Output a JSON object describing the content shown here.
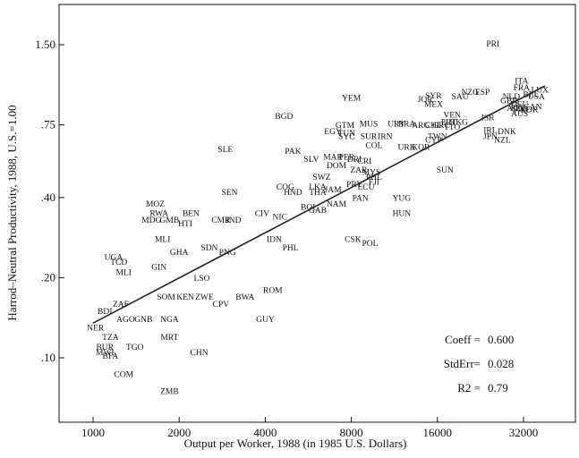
{
  "chart_data": {
    "type": "scatter",
    "xlabel": "Output per Worker, 1988 (in 1985 U.S. Dollars)",
    "ylabel": "Harrod–Neutral Productivity, 1988, U.S.=1.00",
    "x_scale": "log",
    "y_scale": "log",
    "xlim": [
      700,
      50000
    ],
    "ylim": [
      0.07,
      1.8
    ],
    "x_ticks": [
      {
        "value": 1000,
        "label": "1000"
      },
      {
        "value": 2000,
        "label": "2000"
      },
      {
        "value": 4000,
        "label": "4000"
      },
      {
        "value": 8000,
        "label": "8000"
      },
      {
        "value": 16000,
        "label": "16000"
      },
      {
        "value": 32000,
        "label": "32000"
      }
    ],
    "y_ticks": [
      {
        "value": 0.1,
        "label": ".10"
      },
      {
        "value": 0.2,
        "label": ".20"
      },
      {
        "value": 0.4,
        "label": ".40"
      },
      {
        "value": 0.75,
        "label": ".75"
      },
      {
        "value": 1.5,
        "label": "1.50"
      }
    ],
    "fit_line": {
      "x": [
        1000,
        38000
      ],
      "y": [
        0.135,
        1.05
      ]
    },
    "stats": [
      {
        "label": "Coeff =",
        "value": "0.600"
      },
      {
        "label": "StdErr=",
        "value": "0.028"
      },
      {
        "label": "R2 =",
        "value": "0.79"
      }
    ],
    "points": [
      {
        "label": "PRI",
        "x": 25000,
        "y": 1.52
      },
      {
        "label": "ITA",
        "x": 31500,
        "y": 1.1
      },
      {
        "label": "FRA",
        "x": 31500,
        "y": 1.04
      },
      {
        "label": "LUX",
        "x": 36500,
        "y": 1.02
      },
      {
        "label": "BEL",
        "x": 34000,
        "y": 0.98
      },
      {
        "label": "USA",
        "x": 35500,
        "y": 0.96
      },
      {
        "label": "NLD",
        "x": 29000,
        "y": 0.96
      },
      {
        "label": "ESP",
        "x": 23000,
        "y": 1.0
      },
      {
        "label": "NZG",
        "x": 20800,
        "y": 1.0
      },
      {
        "label": "SAU",
        "x": 19200,
        "y": 0.96
      },
      {
        "label": "SYR",
        "x": 15500,
        "y": 0.97
      },
      {
        "label": "JOR",
        "x": 14500,
        "y": 0.94
      },
      {
        "label": "MEX",
        "x": 15500,
        "y": 0.9
      },
      {
        "label": "GBR",
        "x": 28500,
        "y": 0.93
      },
      {
        "label": "DEU",
        "x": 31000,
        "y": 0.9
      },
      {
        "label": "FIN",
        "x": 30500,
        "y": 0.87
      },
      {
        "label": "SWE",
        "x": 31500,
        "y": 0.86
      },
      {
        "label": "NOR",
        "x": 33500,
        "y": 0.86
      },
      {
        "label": "CAN",
        "x": 34500,
        "y": 0.88
      },
      {
        "label": "AUT",
        "x": 30000,
        "y": 0.87
      },
      {
        "label": "AUS",
        "x": 31000,
        "y": 0.83
      },
      {
        "label": "VEN",
        "x": 18000,
        "y": 0.82
      },
      {
        "label": "ISR",
        "x": 24000,
        "y": 0.8
      },
      {
        "label": "YEM",
        "x": 8000,
        "y": 0.95
      },
      {
        "label": "BGD",
        "x": 4650,
        "y": 0.81
      },
      {
        "label": "MUS",
        "x": 9200,
        "y": 0.76
      },
      {
        "label": "GTM",
        "x": 7600,
        "y": 0.75
      },
      {
        "label": "EGY",
        "x": 6900,
        "y": 0.71
      },
      {
        "label": "TUN",
        "x": 7700,
        "y": 0.7
      },
      {
        "label": "SYC",
        "x": 7700,
        "y": 0.68
      },
      {
        "label": "SUR",
        "x": 9200,
        "y": 0.68
      },
      {
        "label": "IRN",
        "x": 10500,
        "y": 0.68
      },
      {
        "label": "URY",
        "x": 11500,
        "y": 0.76
      },
      {
        "label": "BRA",
        "x": 12500,
        "y": 0.76
      },
      {
        "label": "ARG",
        "x": 14000,
        "y": 0.75
      },
      {
        "label": "CHL",
        "x": 15500,
        "y": 0.75
      },
      {
        "label": "GRC",
        "x": 16500,
        "y": 0.75
      },
      {
        "label": "PRT",
        "x": 17500,
        "y": 0.77
      },
      {
        "label": "HKG",
        "x": 19000,
        "y": 0.77
      },
      {
        "label": "TTO",
        "x": 18000,
        "y": 0.74
      },
      {
        "label": "IRL",
        "x": 24500,
        "y": 0.72
      },
      {
        "label": "DNK",
        "x": 28000,
        "y": 0.71
      },
      {
        "label": "JPN",
        "x": 24500,
        "y": 0.68
      },
      {
        "label": "NZL",
        "x": 27000,
        "y": 0.66
      },
      {
        "label": "TWN",
        "x": 16000,
        "y": 0.68
      },
      {
        "label": "KOR",
        "x": 14000,
        "y": 0.62
      },
      {
        "label": "CYP",
        "x": 15500,
        "y": 0.66
      },
      {
        "label": "COL",
        "x": 9600,
        "y": 0.63
      },
      {
        "label": "URK",
        "x": 12500,
        "y": 0.62
      },
      {
        "label": "SLE",
        "x": 2900,
        "y": 0.61
      },
      {
        "label": "PAK",
        "x": 5000,
        "y": 0.6
      },
      {
        "label": "SLV",
        "x": 5800,
        "y": 0.56
      },
      {
        "label": "MAR",
        "x": 6900,
        "y": 0.57
      },
      {
        "label": "PER",
        "x": 7700,
        "y": 0.57
      },
      {
        "label": "DRI",
        "x": 8200,
        "y": 0.56
      },
      {
        "label": "CRI",
        "x": 8900,
        "y": 0.55
      },
      {
        "label": "DOM",
        "x": 7100,
        "y": 0.53
      },
      {
        "label": "ZAR",
        "x": 8500,
        "y": 0.51
      },
      {
        "label": "SWZ",
        "x": 6300,
        "y": 0.48
      },
      {
        "label": "MYS",
        "x": 9400,
        "y": 0.5
      },
      {
        "label": "PHL",
        "x": 9600,
        "y": 0.48
      },
      {
        "label": "PRY",
        "x": 8200,
        "y": 0.45
      },
      {
        "label": "ECU",
        "x": 9000,
        "y": 0.44
      },
      {
        "label": "FJI",
        "x": 9600,
        "y": 0.46
      },
      {
        "label": "SUN",
        "x": 17000,
        "y": 0.51
      },
      {
        "label": "COG",
        "x": 4700,
        "y": 0.44
      },
      {
        "label": "LKA",
        "x": 6100,
        "y": 0.44
      },
      {
        "label": "JAM",
        "x": 6900,
        "y": 0.43
      },
      {
        "label": "HND",
        "x": 5000,
        "y": 0.42
      },
      {
        "label": "THA",
        "x": 6100,
        "y": 0.42
      },
      {
        "label": "SEN",
        "x": 3000,
        "y": 0.42
      },
      {
        "label": "PAN",
        "x": 8600,
        "y": 0.4
      },
      {
        "label": "YUG",
        "x": 12000,
        "y": 0.4
      },
      {
        "label": "NAM",
        "x": 7100,
        "y": 0.38
      },
      {
        "label": "BOL",
        "x": 5700,
        "y": 0.37
      },
      {
        "label": "GAB",
        "x": 6100,
        "y": 0.36
      },
      {
        "label": "HUN",
        "x": 12000,
        "y": 0.35
      },
      {
        "label": "MOZ",
        "x": 1650,
        "y": 0.38
      },
      {
        "label": "RWA",
        "x": 1700,
        "y": 0.35
      },
      {
        "label": "BEN",
        "x": 2200,
        "y": 0.35
      },
      {
        "label": "CIV",
        "x": 3900,
        "y": 0.35
      },
      {
        "label": "NIC",
        "x": 4500,
        "y": 0.34
      },
      {
        "label": "MDG",
        "x": 1600,
        "y": 0.33
      },
      {
        "label": "GMB",
        "x": 1850,
        "y": 0.33
      },
      {
        "label": "HTI",
        "x": 2100,
        "y": 0.32
      },
      {
        "label": "CMR",
        "x": 2800,
        "y": 0.33
      },
      {
        "label": "IND",
        "x": 3100,
        "y": 0.33
      },
      {
        "label": "IDN",
        "x": 4300,
        "y": 0.28
      },
      {
        "label": "MLI",
        "x": 1750,
        "y": 0.28
      },
      {
        "label": "CSK",
        "x": 8100,
        "y": 0.28
      },
      {
        "label": "POL",
        "x": 9300,
        "y": 0.27
      },
      {
        "label": "PHL",
        "x": 4900,
        "y": 0.26
      },
      {
        "label": "UGA",
        "x": 1180,
        "y": 0.24
      },
      {
        "label": "TCD",
        "x": 1230,
        "y": 0.23
      },
      {
        "label": "SDN",
        "x": 2550,
        "y": 0.26
      },
      {
        "label": "GHA",
        "x": 2000,
        "y": 0.25
      },
      {
        "label": "PNG",
        "x": 2950,
        "y": 0.25
      },
      {
        "label": "MLI",
        "x": 1280,
        "y": 0.21
      },
      {
        "label": "GIN",
        "x": 1700,
        "y": 0.22
      },
      {
        "label": "LSO",
        "x": 2400,
        "y": 0.2
      },
      {
        "label": "SOM",
        "x": 1800,
        "y": 0.17
      },
      {
        "label": "KEN",
        "x": 2100,
        "y": 0.17
      },
      {
        "label": "ZWE",
        "x": 2450,
        "y": 0.17
      },
      {
        "label": "CPV",
        "x": 2800,
        "y": 0.16
      },
      {
        "label": "BWA",
        "x": 3400,
        "y": 0.17
      },
      {
        "label": "ROM",
        "x": 4250,
        "y": 0.18
      },
      {
        "label": "ZAF",
        "x": 1250,
        "y": 0.16
      },
      {
        "label": "BDI",
        "x": 1100,
        "y": 0.15
      },
      {
        "label": "AGO",
        "x": 1300,
        "y": 0.14
      },
      {
        "label": "GNB",
        "x": 1500,
        "y": 0.14
      },
      {
        "label": "NGA",
        "x": 1850,
        "y": 0.14
      },
      {
        "label": "GUY",
        "x": 4000,
        "y": 0.14
      },
      {
        "label": "NER",
        "x": 1020,
        "y": 0.13
      },
      {
        "label": "TZA",
        "x": 1150,
        "y": 0.12
      },
      {
        "label": "MRT",
        "x": 1850,
        "y": 0.12
      },
      {
        "label": "BUR",
        "x": 1100,
        "y": 0.11
      },
      {
        "label": "TGO",
        "x": 1400,
        "y": 0.11
      },
      {
        "label": "MWI",
        "x": 1100,
        "y": 0.105
      },
      {
        "label": "BFA",
        "x": 1150,
        "y": 0.102
      },
      {
        "label": "CHN",
        "x": 2350,
        "y": 0.105
      },
      {
        "label": "COM",
        "x": 1280,
        "y": 0.087
      },
      {
        "label": "ZMB",
        "x": 1850,
        "y": 0.075
      }
    ]
  }
}
